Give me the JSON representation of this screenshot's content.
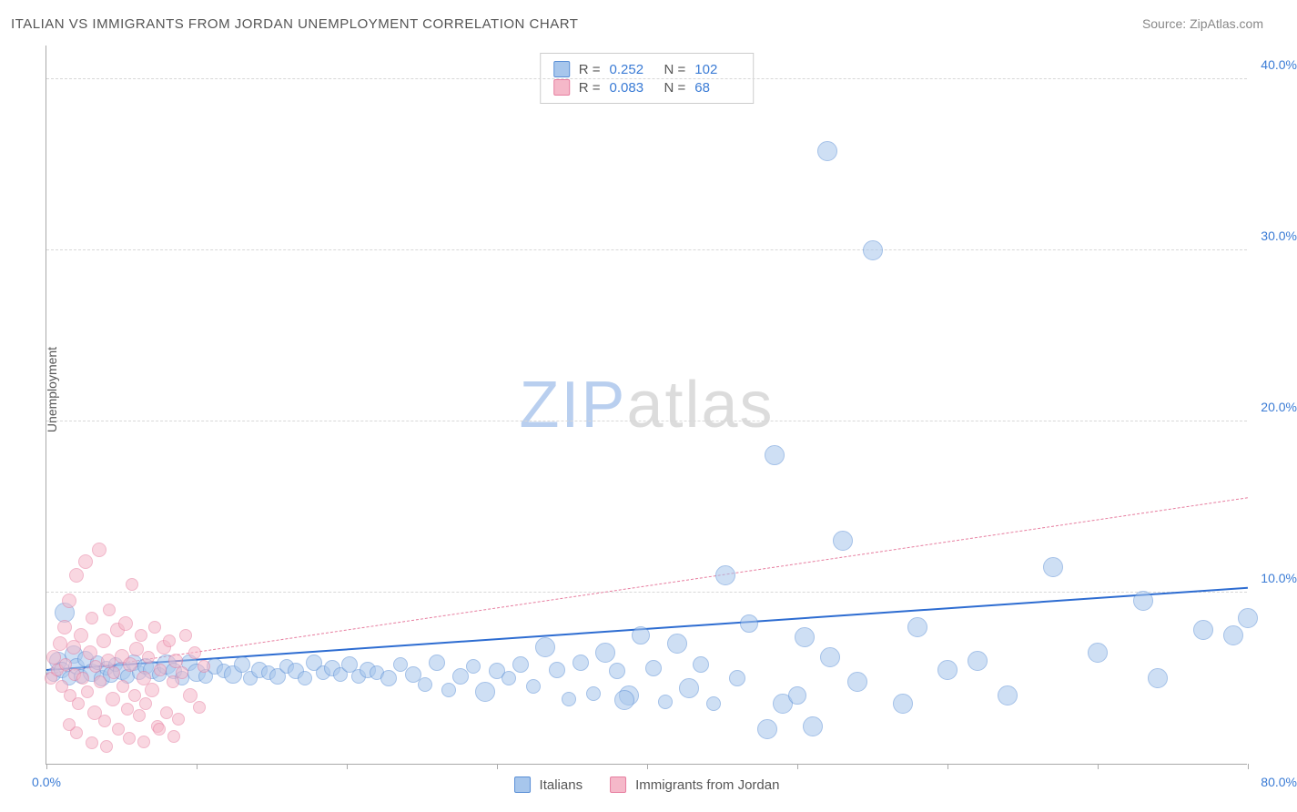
{
  "title": "ITALIAN VS IMMIGRANTS FROM JORDAN UNEMPLOYMENT CORRELATION CHART",
  "source_label": "Source: ",
  "source_name": "ZipAtlas.com",
  "y_axis_label": "Unemployment",
  "watermark": {
    "part1": "ZIP",
    "part2": "atlas"
  },
  "chart": {
    "type": "scatter",
    "background_color": "#ffffff",
    "grid_color": "#d8d8d8",
    "axis_color": "#aaaaaa",
    "tick_label_color": "#3a7bd5",
    "xlim": [
      0,
      80
    ],
    "ylim": [
      0,
      42
    ],
    "x_ticks": [
      0,
      10,
      20,
      30,
      40,
      50,
      60,
      70,
      80
    ],
    "x_tick_labels_shown": {
      "0": "0.0%",
      "80": "80.0%"
    },
    "y_gridlines": [
      10,
      20,
      30,
      40
    ],
    "y_tick_labels": {
      "10": "10.0%",
      "20": "20.0%",
      "30": "30.0%",
      "40": "40.0%"
    },
    "marker_radius_range_px": [
      5,
      14
    ],
    "series": [
      {
        "name": "Italians",
        "fill_color": "#a7c6ec",
        "stroke_color": "#5a8fd6",
        "fill_opacity": 0.55,
        "trend": {
          "color": "#2d6cd1",
          "width": 2.5,
          "dash": "solid",
          "y_at_x0": 5.4,
          "y_at_xmax": 10.2
        },
        "R": "0.252",
        "N": "102",
        "points": [
          [
            0.5,
            5.2,
            8
          ],
          [
            0.8,
            6.0,
            10
          ],
          [
            1.0,
            5.5,
            9
          ],
          [
            1.2,
            8.8,
            11
          ],
          [
            1.5,
            5.0,
            8
          ],
          [
            1.8,
            6.4,
            10
          ],
          [
            2.0,
            5.7,
            9
          ],
          [
            2.3,
            5.1,
            8
          ],
          [
            2.6,
            6.1,
            9
          ],
          [
            3.0,
            5.3,
            10
          ],
          [
            3.4,
            5.9,
            8
          ],
          [
            3.7,
            5.0,
            9
          ],
          [
            4.0,
            5.6,
            8
          ],
          [
            4.3,
            5.2,
            9
          ],
          [
            4.6,
            5.8,
            8
          ],
          [
            5.0,
            5.4,
            10
          ],
          [
            5.4,
            5.1,
            8
          ],
          [
            5.8,
            5.9,
            9
          ],
          [
            6.2,
            5.3,
            8
          ],
          [
            6.6,
            5.7,
            9
          ],
          [
            7.0,
            5.5,
            10
          ],
          [
            7.5,
            5.2,
            8
          ],
          [
            8.0,
            5.8,
            11
          ],
          [
            8.5,
            5.4,
            9
          ],
          [
            9.0,
            5.0,
            8
          ],
          [
            9.5,
            5.9,
            9
          ],
          [
            10.0,
            5.3,
            10
          ],
          [
            10.6,
            5.1,
            8
          ],
          [
            11.2,
            5.7,
            9
          ],
          [
            11.8,
            5.4,
            8
          ],
          [
            12.4,
            5.2,
            10
          ],
          [
            13.0,
            5.8,
            9
          ],
          [
            13.6,
            5.0,
            8
          ],
          [
            14.2,
            5.5,
            9
          ],
          [
            14.8,
            5.3,
            8
          ],
          [
            15.4,
            5.1,
            9
          ],
          [
            16.0,
            5.7,
            8
          ],
          [
            16.6,
            5.4,
            9
          ],
          [
            17.2,
            5.0,
            8
          ],
          [
            17.8,
            5.9,
            9
          ],
          [
            18.4,
            5.3,
            8
          ],
          [
            19.0,
            5.6,
            9
          ],
          [
            19.6,
            5.2,
            8
          ],
          [
            20.2,
            5.8,
            9
          ],
          [
            20.8,
            5.1,
            8
          ],
          [
            21.4,
            5.5,
            9
          ],
          [
            22.0,
            5.3,
            8
          ],
          [
            22.8,
            5.0,
            9
          ],
          [
            23.6,
            5.8,
            8
          ],
          [
            24.4,
            5.2,
            9
          ],
          [
            25.2,
            4.6,
            8
          ],
          [
            26.0,
            5.9,
            9
          ],
          [
            26.8,
            4.3,
            8
          ],
          [
            27.6,
            5.1,
            9
          ],
          [
            28.4,
            5.7,
            8
          ],
          [
            29.2,
            4.2,
            11
          ],
          [
            30.0,
            5.4,
            9
          ],
          [
            30.8,
            5.0,
            8
          ],
          [
            31.6,
            5.8,
            9
          ],
          [
            32.4,
            4.5,
            8
          ],
          [
            33.2,
            6.8,
            11
          ],
          [
            34.0,
            5.5,
            9
          ],
          [
            34.8,
            3.8,
            8
          ],
          [
            35.6,
            5.9,
            9
          ],
          [
            36.4,
            4.1,
            8
          ],
          [
            37.2,
            6.5,
            11
          ],
          [
            38.0,
            5.4,
            9
          ],
          [
            38.8,
            4.0,
            11
          ],
          [
            39.6,
            7.5,
            10
          ],
          [
            40.4,
            5.6,
            9
          ],
          [
            41.2,
            3.6,
            8
          ],
          [
            42.0,
            7.0,
            11
          ],
          [
            42.8,
            4.4,
            11
          ],
          [
            43.6,
            5.8,
            9
          ],
          [
            44.4,
            3.5,
            8
          ],
          [
            45.2,
            11.0,
            11
          ],
          [
            46.0,
            5.0,
            9
          ],
          [
            46.8,
            8.2,
            10
          ],
          [
            48.0,
            2.0,
            11
          ],
          [
            49.0,
            3.5,
            11
          ],
          [
            50.0,
            4.0,
            10
          ],
          [
            50.5,
            7.4,
            11
          ],
          [
            51.0,
            2.2,
            11
          ],
          [
            52.2,
            6.2,
            11
          ],
          [
            48.5,
            18.0,
            11
          ],
          [
            52.0,
            35.8,
            11
          ],
          [
            53.0,
            13.0,
            11
          ],
          [
            55.0,
            30.0,
            11
          ],
          [
            54.0,
            4.8,
            11
          ],
          [
            57.0,
            3.5,
            11
          ],
          [
            58.0,
            8.0,
            11
          ],
          [
            60.0,
            5.5,
            11
          ],
          [
            62.0,
            6.0,
            11
          ],
          [
            64.0,
            4.0,
            11
          ],
          [
            67.0,
            11.5,
            11
          ],
          [
            70.0,
            6.5,
            11
          ],
          [
            73.0,
            9.5,
            11
          ],
          [
            74.0,
            5.0,
            11
          ],
          [
            77.0,
            7.8,
            11
          ],
          [
            79.0,
            7.5,
            11
          ],
          [
            80.0,
            8.5,
            11
          ],
          [
            38.5,
            3.7,
            11
          ]
        ]
      },
      {
        "name": "Immigrants from Jordan",
        "fill_color": "#f5b8c9",
        "stroke_color": "#e77ea0",
        "fill_opacity": 0.55,
        "trend": {
          "color": "#e77ea0",
          "width": 1.5,
          "dash": "dashed",
          "y_at_x0": 5.2,
          "y_at_xmax": 15.5
        },
        "R": "0.083",
        "N": "68",
        "points": [
          [
            0.3,
            5.0,
            7
          ],
          [
            0.5,
            6.2,
            8
          ],
          [
            0.7,
            5.5,
            7
          ],
          [
            0.9,
            7.0,
            8
          ],
          [
            1.0,
            4.5,
            7
          ],
          [
            1.2,
            8.0,
            8
          ],
          [
            1.3,
            5.8,
            7
          ],
          [
            1.5,
            9.5,
            8
          ],
          [
            1.6,
            4.0,
            7
          ],
          [
            1.8,
            6.8,
            8
          ],
          [
            1.9,
            5.2,
            7
          ],
          [
            2.0,
            11.0,
            8
          ],
          [
            2.1,
            3.5,
            7
          ],
          [
            2.3,
            7.5,
            8
          ],
          [
            2.4,
            5.0,
            7
          ],
          [
            2.6,
            11.8,
            8
          ],
          [
            2.7,
            4.2,
            7
          ],
          [
            2.9,
            6.5,
            8
          ],
          [
            3.0,
            8.5,
            7
          ],
          [
            3.2,
            3.0,
            8
          ],
          [
            3.3,
            5.7,
            7
          ],
          [
            3.5,
            12.5,
            8
          ],
          [
            3.6,
            4.8,
            7
          ],
          [
            3.8,
            7.2,
            8
          ],
          [
            3.9,
            2.5,
            7
          ],
          [
            4.1,
            6.0,
            8
          ],
          [
            4.2,
            9.0,
            7
          ],
          [
            4.4,
            3.8,
            8
          ],
          [
            4.5,
            5.3,
            7
          ],
          [
            4.7,
            7.8,
            8
          ],
          [
            4.8,
            2.0,
            7
          ],
          [
            5.0,
            6.3,
            8
          ],
          [
            5.1,
            4.5,
            7
          ],
          [
            5.3,
            8.2,
            8
          ],
          [
            5.4,
            3.2,
            7
          ],
          [
            5.6,
            5.8,
            8
          ],
          [
            5.7,
            10.5,
            7
          ],
          [
            5.9,
            4.0,
            7
          ],
          [
            6.0,
            6.7,
            8
          ],
          [
            6.2,
            2.8,
            7
          ],
          [
            6.3,
            7.5,
            7
          ],
          [
            6.5,
            5.0,
            8
          ],
          [
            6.6,
            3.5,
            7
          ],
          [
            6.8,
            6.2,
            7
          ],
          [
            7.0,
            4.3,
            8
          ],
          [
            7.2,
            8.0,
            7
          ],
          [
            7.4,
            2.2,
            7
          ],
          [
            7.6,
            5.5,
            7
          ],
          [
            7.8,
            6.8,
            8
          ],
          [
            8.0,
            3.0,
            7
          ],
          [
            8.2,
            7.2,
            7
          ],
          [
            8.4,
            4.8,
            7
          ],
          [
            8.6,
            6.0,
            8
          ],
          [
            8.8,
            2.6,
            7
          ],
          [
            9.0,
            5.3,
            7
          ],
          [
            9.3,
            7.5,
            7
          ],
          [
            9.6,
            4.0,
            8
          ],
          [
            9.9,
            6.5,
            7
          ],
          [
            10.2,
            3.3,
            7
          ],
          [
            10.5,
            5.7,
            7
          ],
          [
            4.0,
            1.0,
            7
          ],
          [
            5.5,
            1.5,
            7
          ],
          [
            3.0,
            1.2,
            7
          ],
          [
            2.0,
            1.8,
            7
          ],
          [
            6.5,
            1.3,
            7
          ],
          [
            7.5,
            2.0,
            7
          ],
          [
            1.5,
            2.3,
            7
          ],
          [
            8.5,
            1.6,
            7
          ]
        ]
      }
    ]
  },
  "legend_top": {
    "rows": [
      {
        "swatch": 0,
        "r_label": "R =",
        "n_label": "N ="
      },
      {
        "swatch": 1,
        "r_label": "R =",
        "n_label": "N ="
      }
    ]
  },
  "legend_bottom": {
    "items": [
      {
        "swatch": 0,
        "label_key": "chart.series.0.name"
      },
      {
        "swatch": 1,
        "label_key": "chart.series.1.name"
      }
    ]
  }
}
